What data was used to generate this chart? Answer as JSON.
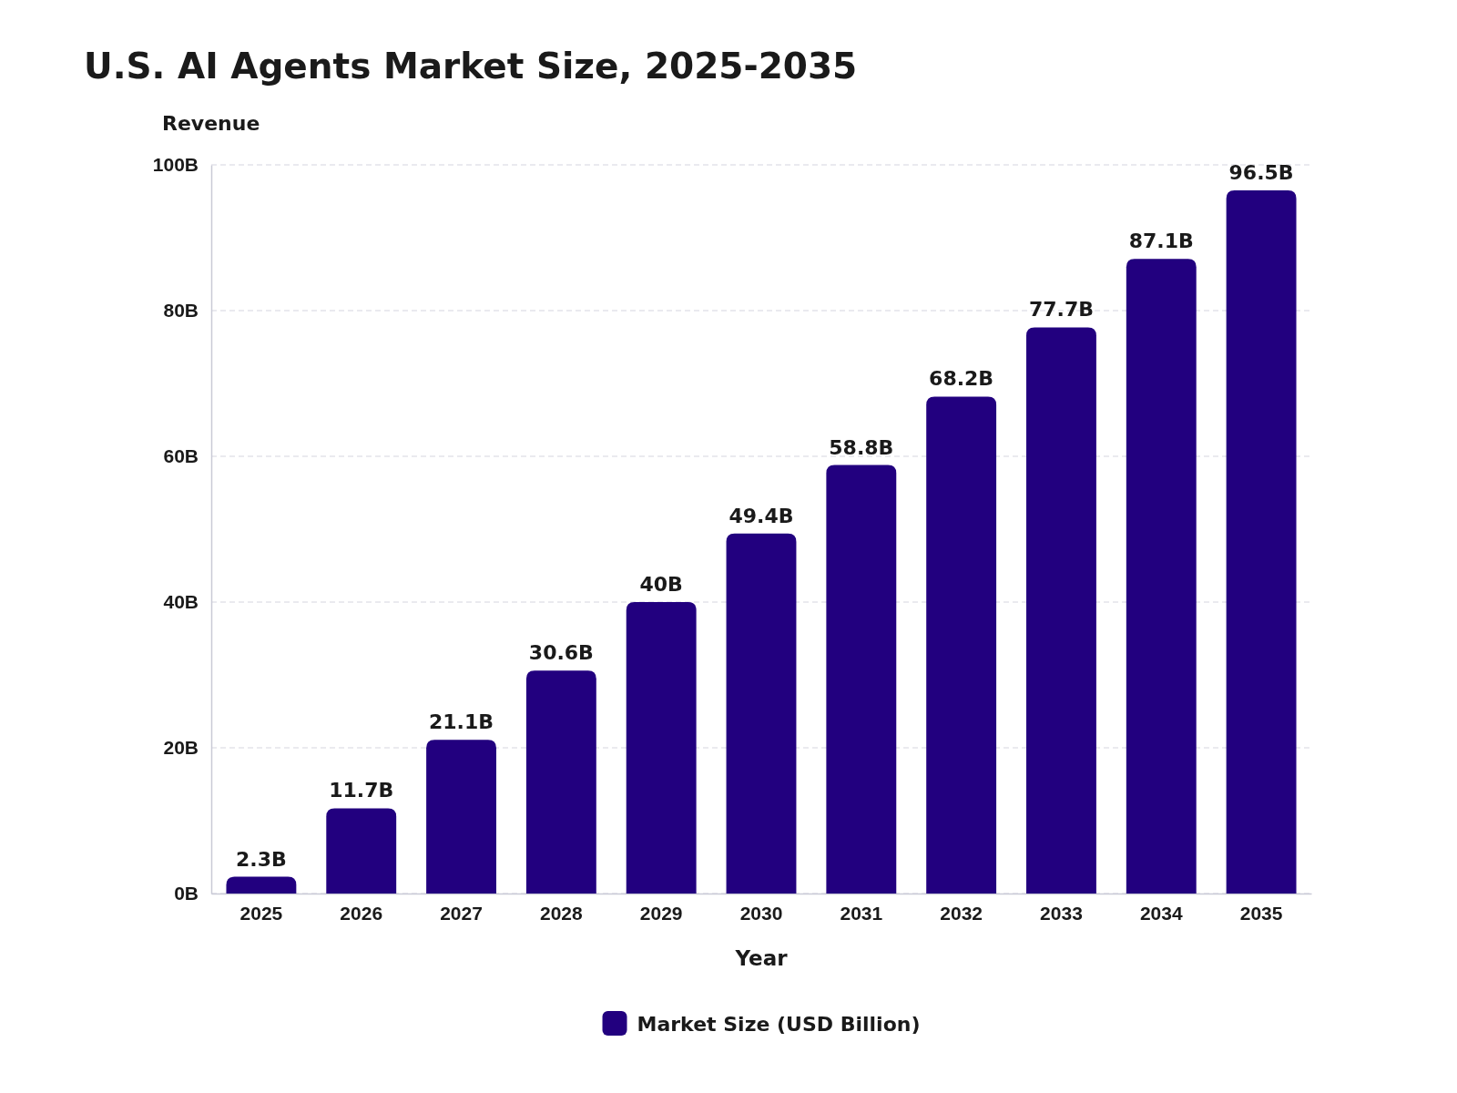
{
  "chart_data": {
    "type": "bar",
    "title": "U.S. AI Agents Market Size, 2025-2035",
    "xlabel": "Year",
    "ylabel": "Revenue",
    "categories": [
      "2025",
      "2026",
      "2027",
      "2028",
      "2029",
      "2030",
      "2031",
      "2032",
      "2033",
      "2034",
      "2035"
    ],
    "series": [
      {
        "name": "Market Size (USD Billion)",
        "color": "#22007f",
        "values": [
          2.3,
          11.7,
          21.1,
          30.6,
          40,
          49.4,
          58.8,
          68.2,
          77.7,
          87.1,
          96.5
        ],
        "value_labels": [
          "2.3B",
          "11.7B",
          "21.1B",
          "30.6B",
          "40B",
          "49.4B",
          "58.8B",
          "68.2B",
          "77.7B",
          "87.1B",
          "96.5B"
        ]
      }
    ],
    "ylim": [
      0,
      100
    ],
    "yticks": [
      {
        "value": 0,
        "label": "0B"
      },
      {
        "value": 20,
        "label": "20B"
      },
      {
        "value": 40,
        "label": "40B"
      },
      {
        "value": 60,
        "label": "60B"
      },
      {
        "value": 80,
        "label": "80B"
      },
      {
        "value": 100,
        "label": "100B"
      }
    ],
    "grid": "y",
    "legend": "bottom"
  }
}
